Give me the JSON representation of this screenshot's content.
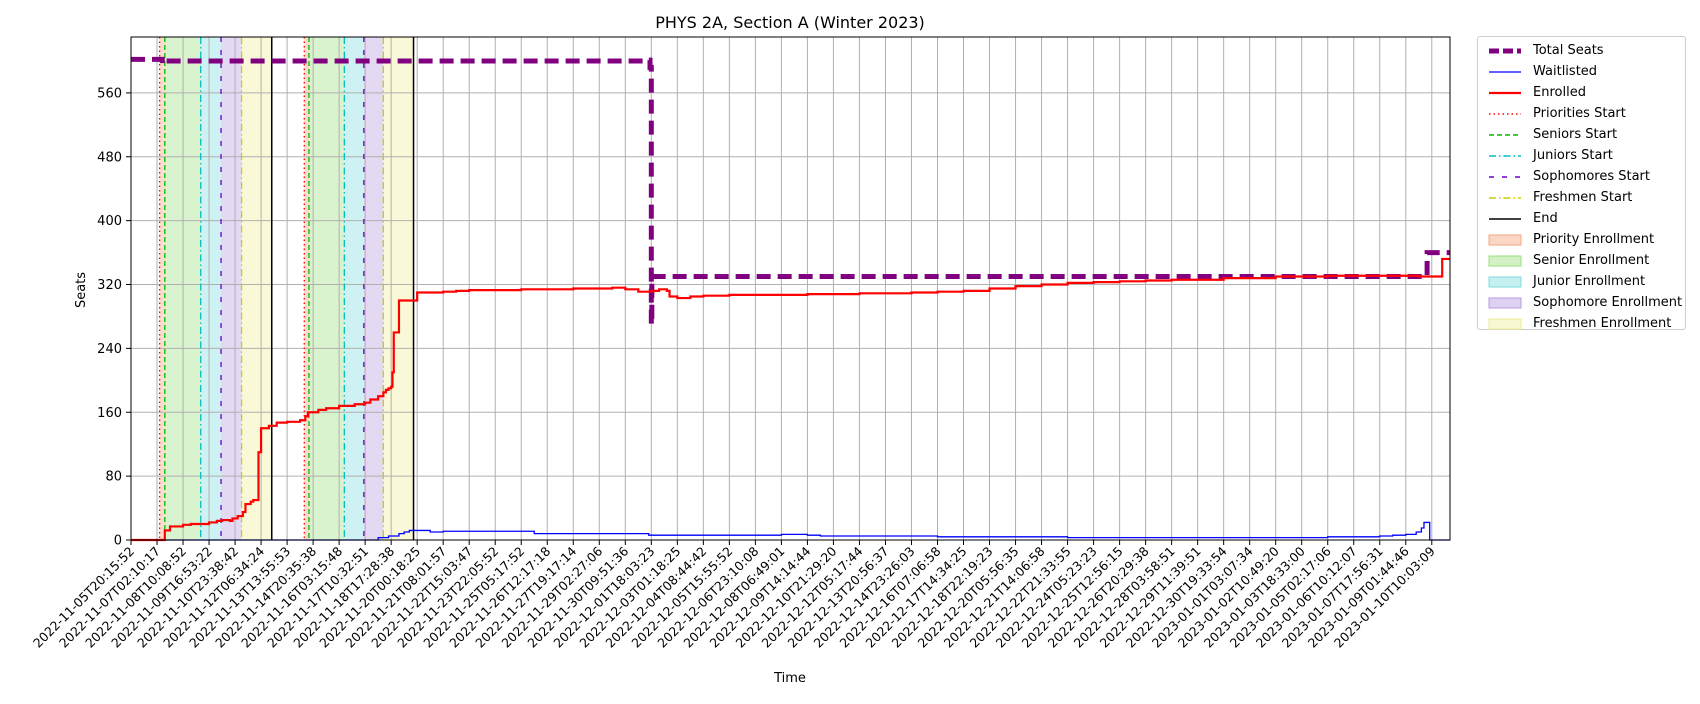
{
  "chart_data": {
    "type": "line",
    "title": "PHYS 2A, Section A (Winter 2023)",
    "xlabel": "Time",
    "ylabel": "Seats",
    "ylim": [
      0,
      630
    ],
    "yticks": [
      0,
      80,
      160,
      240,
      320,
      400,
      480,
      560
    ],
    "grid": true,
    "legend_position": "outside-right",
    "x_tick_labels": [
      "2022-11-05T20:15:52",
      "2022-11-07T02:10:17",
      "2022-11-08T10:08:52",
      "2022-11-09T16:53:22",
      "2022-11-10T23:38:42",
      "2022-11-12T06:34:24",
      "2022-11-13T13:55:53",
      "2022-11-14T20:35:38",
      "2022-11-16T03:15:48",
      "2022-11-17T10:32:51",
      "2022-11-18T17:28:38",
      "2022-11-20T00:18:25",
      "2022-11-21T08:01:57",
      "2022-11-22T15:03:47",
      "2022-11-23T22:05:52",
      "2022-11-25T05:17:52",
      "2022-11-26T12:17:18",
      "2022-11-27T19:17:14",
      "2022-11-29T02:27:06",
      "2022-11-30T09:51:36",
      "2022-12-01T18:03:23",
      "2022-12-03T01:18:25",
      "2022-12-04T08:44:42",
      "2022-12-05T15:55:52",
      "2022-12-06T23:10:08",
      "2022-12-08T06:49:01",
      "2022-12-09T14:14:44",
      "2022-12-10T21:29:20",
      "2022-12-12T05:17:44",
      "2022-12-13T20:56:37",
      "2022-12-14T23:26:03",
      "2022-12-16T07:06:58",
      "2022-12-17T14:34:25",
      "2022-12-18T22:19:23",
      "2022-12-20T05:56:35",
      "2022-12-21T14:06:58",
      "2022-12-22T21:33:55",
      "2022-12-24T05:23:23",
      "2022-12-25T12:56:15",
      "2022-12-26T20:29:38",
      "2022-12-28T03:58:51",
      "2022-12-29T11:39:51",
      "2022-12-30T19:33:54",
      "2023-01-01T03:07:34",
      "2023-01-02T10:49:20",
      "2023-01-03T18:33:00",
      "2023-01-05T02:17:06",
      "2023-01-06T10:12:07",
      "2023-01-07T17:56:31",
      "2023-01-09T01:44:46",
      "2023-01-10T10:03:09"
    ],
    "x_range": [
      0,
      50.7
    ],
    "series": [
      {
        "name": "Total Seats",
        "color": "#800080",
        "style": "dashed-thick",
        "x": [
          0,
          1.1,
          1.2,
          1.3,
          2.2,
          5.5,
          6.5,
          12.0,
          19.5,
          19.7,
          19.9,
          19.95,
          20.0,
          20.02,
          40.0,
          49.5,
          49.8,
          49.82,
          49.9,
          50.4,
          50.45,
          50.7
        ],
        "y": [
          602,
          602,
          597,
          600,
          600,
          600,
          600,
          600,
          600,
          601,
          601,
          592,
          270,
          330,
          330,
          330,
          330,
          360,
          360,
          360,
          360,
          360
        ]
      },
      {
        "name": "Waitlisted",
        "color": "#0000ff",
        "style": "solid",
        "x": [
          0,
          9.4,
          9.5,
          9.9,
          10.1,
          10.3,
          10.5,
          10.7,
          11.5,
          12.0,
          15.0,
          15.5,
          19.0,
          19.9,
          23.0,
          24.0,
          25.0,
          26.0,
          26.5,
          30.0,
          31.0,
          35.0,
          36.0,
          45.0,
          46.0,
          47.0,
          48.0,
          48.5,
          49.0,
          49.4,
          49.6,
          49.7,
          49.9,
          49.92,
          50.7
        ],
        "y": [
          0,
          0,
          3,
          5,
          5,
          8,
          10,
          12,
          10,
          11,
          11,
          8,
          8,
          6,
          6,
          6,
          7,
          6,
          5,
          5,
          4,
          4,
          3,
          3,
          4,
          4,
          5,
          6,
          7,
          10,
          15,
          22,
          22,
          0,
          0
        ]
      },
      {
        "name": "Enrolled",
        "color": "#ff0000",
        "style": "solid",
        "x": [
          0,
          1.2,
          1.3,
          1.5,
          2.0,
          2.3,
          2.5,
          3.0,
          3.3,
          3.5,
          3.8,
          3.9,
          4.1,
          4.3,
          4.4,
          4.6,
          4.7,
          4.9,
          5.0,
          5.3,
          5.6,
          6.0,
          6.5,
          6.7,
          6.8,
          7.2,
          7.5,
          8.0,
          8.3,
          8.6,
          9.0,
          9.2,
          9.5,
          9.7,
          9.8,
          9.9,
          10.0,
          10.05,
          10.1,
          10.3,
          11.0,
          11.5,
          12.0,
          12.5,
          13.0,
          14.0,
          15.0,
          16.0,
          17.0,
          18.0,
          18.5,
          19.0,
          19.5,
          20.0,
          20.3,
          20.6,
          20.7,
          21.0,
          21.5,
          22.0,
          23.0,
          24.0,
          25.0,
          26.0,
          27.0,
          28.0,
          29.0,
          30.0,
          31.0,
          32.0,
          33.0,
          34.0,
          35.0,
          36.0,
          37.0,
          38.0,
          39.0,
          40.0,
          42.0,
          44.0,
          46.0,
          48.0,
          49.0,
          49.5,
          49.8,
          49.9,
          50.3,
          50.4,
          50.7
        ],
        "y": [
          0,
          0,
          12,
          17,
          19,
          20,
          20,
          22,
          24,
          25,
          24,
          27,
          30,
          35,
          45,
          48,
          50,
          110,
          140,
          143,
          147,
          148,
          150,
          155,
          160,
          163,
          165,
          168,
          168,
          170,
          172,
          176,
          180,
          185,
          188,
          190,
          192,
          210,
          260,
          300,
          310,
          310,
          311,
          312,
          313,
          313,
          314,
          314,
          315,
          315,
          316,
          314,
          311,
          312,
          314,
          312,
          305,
          303,
          305,
          306,
          307,
          307,
          307,
          308,
          308,
          309,
          309,
          310,
          311,
          312,
          315,
          318,
          320,
          322,
          323,
          324,
          325,
          326,
          328,
          330,
          331,
          331,
          331,
          330,
          330,
          330,
          330,
          352,
          352
        ]
      }
    ],
    "phase_lines": [
      {
        "name": "Priorities Start",
        "color": "#ff0000",
        "style": "dotted",
        "x": [
          1.1,
          6.66
        ]
      },
      {
        "name": "Seniors Start",
        "color": "#00bb00",
        "style": "dashed",
        "x": [
          1.3,
          6.84
        ]
      },
      {
        "name": "Juniors Start",
        "color": "#00bfbf",
        "style": "dashdot",
        "x": [
          2.68,
          8.2
        ]
      },
      {
        "name": "Sophomores Start",
        "color": "#6600cc",
        "style": "loosedash",
        "x": [
          3.46,
          8.95
        ]
      },
      {
        "name": "Freshmen Start",
        "color": "#cccc00",
        "style": "dashdot",
        "x": [
          4.25,
          9.7
        ]
      },
      {
        "name": "End",
        "color": "#000000",
        "style": "solid",
        "x": [
          5.41,
          10.86
        ]
      }
    ],
    "phase_spans": [
      {
        "name": "Priority Enrollment",
        "color": "#f4a582",
        "from": [
          1.1,
          6.66
        ],
        "to": [
          1.3,
          6.84
        ]
      },
      {
        "name": "Senior Enrollment",
        "color": "#9be07f",
        "from": [
          1.3,
          6.84
        ],
        "to": [
          2.68,
          8.2
        ]
      },
      {
        "name": "Junior Enrollment",
        "color": "#7fdbe0",
        "from": [
          2.68,
          8.2
        ],
        "to": [
          3.46,
          8.95
        ]
      },
      {
        "name": "Sophomore Enrollment",
        "color": "#b79ae0",
        "from": [
          3.46,
          8.95
        ],
        "to": [
          4.25,
          9.7
        ]
      },
      {
        "name": "Freshmen Enrollment",
        "color": "#eeee99",
        "from": [
          4.25,
          9.7
        ],
        "to": [
          5.41,
          10.86
        ]
      }
    ]
  }
}
